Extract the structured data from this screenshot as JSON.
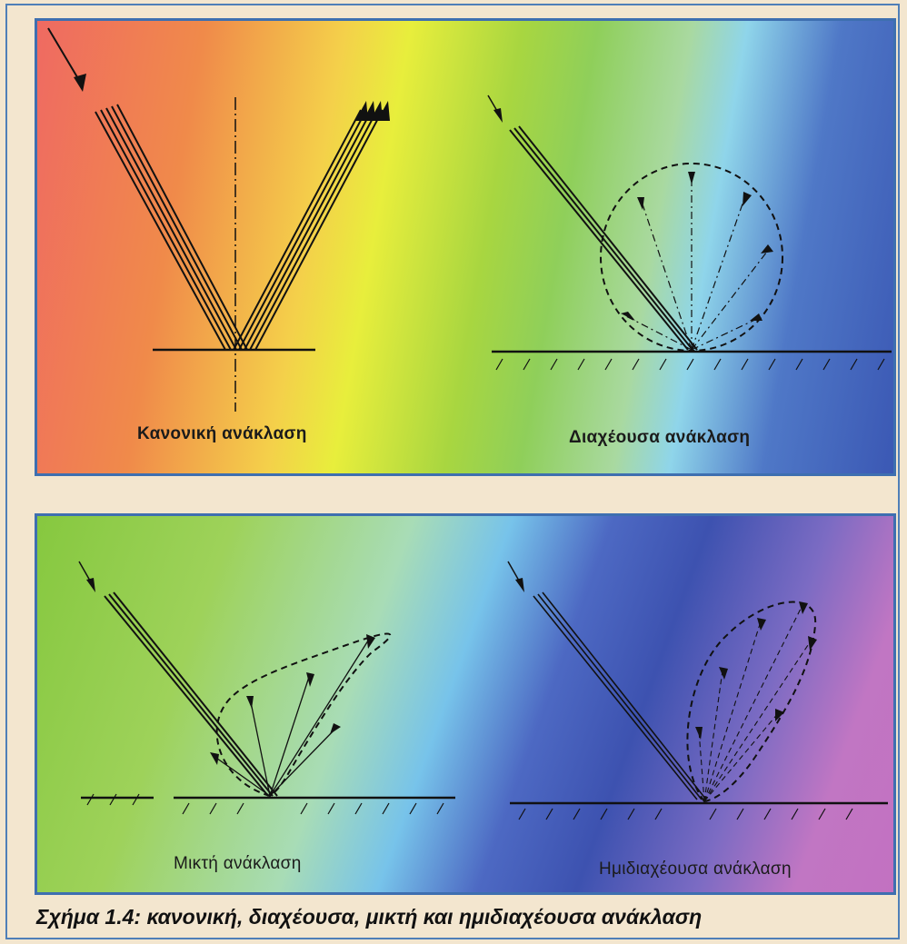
{
  "panels": {
    "regular": {
      "label": "Κανονική ανάκλαση"
    },
    "diffuse": {
      "label": "Διαχέουσα ανάκλαση"
    },
    "mixed": {
      "label": "Μικτή ανάκλαση"
    },
    "semi_diffuse": {
      "label": "Ημιδιαχέουσα ανάκλαση"
    }
  },
  "figure_caption": "Σχήμα 1.4: κανονική, διαχέουσα, μικτή και ημιδιαχέουσα ανάκλαση",
  "colors": {
    "frame_border": "#4f7fb8",
    "panel_border": "#3e6fb0",
    "page_background": "#f3e6cf",
    "ink": "#111111"
  }
}
